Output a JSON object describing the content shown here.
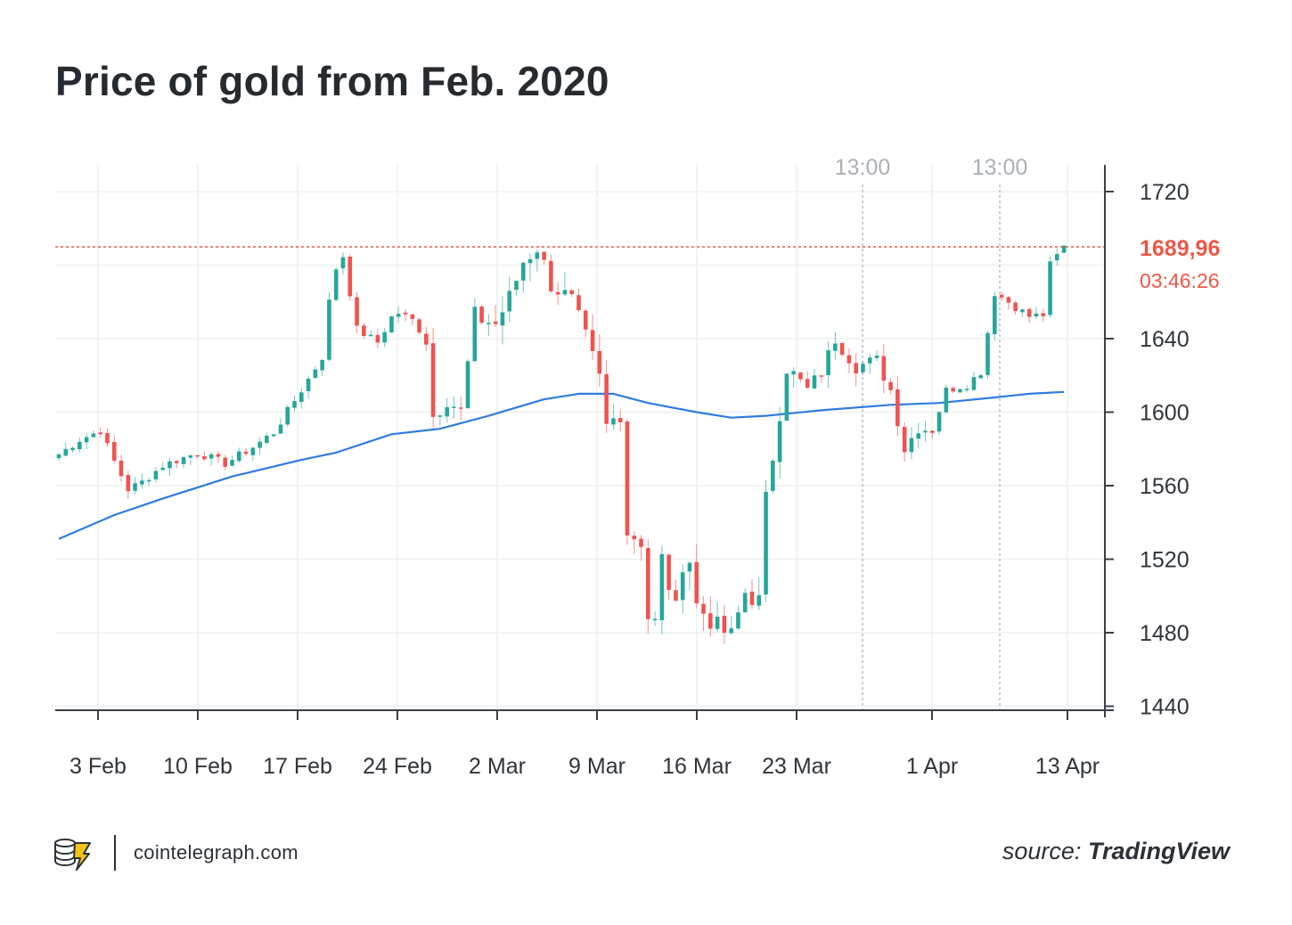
{
  "title": "Price of gold from Feb. 2020",
  "chart_data": {
    "type": "candlestick",
    "title": "Price of gold from Feb. 2020",
    "ylim": [
      1440,
      1730
    ],
    "y_ticks": [
      1440,
      1480,
      1520,
      1560,
      1600,
      1640,
      1720
    ],
    "x_ticks": [
      "3 Feb",
      "10 Feb",
      "17 Feb",
      "24 Feb",
      "2 Mar",
      "9 Mar",
      "16 Mar",
      "23 Mar",
      "1 Apr",
      "13 Apr"
    ],
    "top_time_labels": [
      "13:00",
      "13:00"
    ],
    "current_price": {
      "value": 1689.96,
      "label": "1689,96",
      "countdown": "03:46:26"
    },
    "grid": true,
    "colors": {
      "up": "#26a69a",
      "down": "#ef5350",
      "moving_average": "#2f7be0",
      "price_line": "#ec5745"
    },
    "anchors": [
      {
        "t": 0,
        "p": 1577
      },
      {
        "t": 3,
        "p": 1585
      },
      {
        "t": 6,
        "p": 1590
      },
      {
        "t": 7.5,
        "p": 1577
      },
      {
        "t": 10,
        "p": 1558
      },
      {
        "t": 12,
        "p": 1562
      },
      {
        "t": 15,
        "p": 1571
      },
      {
        "t": 20,
        "p": 1578
      },
      {
        "t": 24,
        "p": 1572
      },
      {
        "t": 28,
        "p": 1581
      },
      {
        "t": 31,
        "p": 1589
      },
      {
        "t": 35,
        "p": 1612
      },
      {
        "t": 38,
        "p": 1630
      },
      {
        "t": 39.5,
        "p": 1675
      },
      {
        "t": 41,
        "p": 1685
      },
      {
        "t": 43,
        "p": 1645
      },
      {
        "t": 46,
        "p": 1638
      },
      {
        "t": 48.5,
        "p": 1655
      },
      {
        "t": 51,
        "p": 1650
      },
      {
        "t": 53,
        "p": 1640
      },
      {
        "t": 54,
        "p": 1598
      },
      {
        "t": 56,
        "p": 1608
      },
      {
        "t": 58,
        "p": 1600
      },
      {
        "t": 60,
        "p": 1652
      },
      {
        "t": 63,
        "p": 1648
      },
      {
        "t": 65,
        "p": 1662
      },
      {
        "t": 67,
        "p": 1682
      },
      {
        "t": 69,
        "p": 1690
      },
      {
        "t": 71,
        "p": 1670
      },
      {
        "t": 74,
        "p": 1660
      },
      {
        "t": 76,
        "p": 1640
      },
      {
        "t": 78,
        "p": 1618
      },
      {
        "t": 79,
        "p": 1592
      },
      {
        "t": 81,
        "p": 1600
      },
      {
        "t": 82,
        "p": 1535
      },
      {
        "t": 84,
        "p": 1530
      },
      {
        "t": 85.5,
        "p": 1468
      },
      {
        "t": 87,
        "p": 1520
      },
      {
        "t": 89,
        "p": 1492
      },
      {
        "t": 90.5,
        "p": 1532
      },
      {
        "t": 92,
        "p": 1495
      },
      {
        "t": 95,
        "p": 1483
      },
      {
        "t": 97,
        "p": 1478
      },
      {
        "t": 99,
        "p": 1502
      },
      {
        "t": 101,
        "p": 1497
      },
      {
        "t": 102,
        "p": 1552
      },
      {
        "t": 105,
        "p": 1625
      },
      {
        "t": 108,
        "p": 1612
      },
      {
        "t": 110,
        "p": 1622
      },
      {
        "t": 112,
        "p": 1640
      },
      {
        "t": 115,
        "p": 1625
      },
      {
        "t": 118,
        "p": 1628
      },
      {
        "t": 120,
        "p": 1612
      },
      {
        "t": 122,
        "p": 1580
      },
      {
        "t": 124,
        "p": 1592
      },
      {
        "t": 126,
        "p": 1590
      },
      {
        "t": 128,
        "p": 1612
      },
      {
        "t": 131,
        "p": 1615
      },
      {
        "t": 133,
        "p": 1622
      },
      {
        "t": 135,
        "p": 1665
      },
      {
        "t": 137,
        "p": 1660
      },
      {
        "t": 140,
        "p": 1652
      },
      {
        "t": 142,
        "p": 1653
      },
      {
        "t": 143,
        "p": 1680
      },
      {
        "t": 145,
        "p": 1690
      }
    ],
    "moving_average": [
      {
        "t": 0,
        "p": 1531
      },
      {
        "t": 8,
        "p": 1544
      },
      {
        "t": 15,
        "p": 1553
      },
      {
        "t": 25,
        "p": 1565
      },
      {
        "t": 35,
        "p": 1574
      },
      {
        "t": 40,
        "p": 1578
      },
      {
        "t": 48,
        "p": 1588
      },
      {
        "t": 55,
        "p": 1591
      },
      {
        "t": 62,
        "p": 1598
      },
      {
        "t": 70,
        "p": 1607
      },
      {
        "t": 75,
        "p": 1610
      },
      {
        "t": 80,
        "p": 1610
      },
      {
        "t": 85,
        "p": 1605
      },
      {
        "t": 92,
        "p": 1600
      },
      {
        "t": 97,
        "p": 1597
      },
      {
        "t": 102,
        "p": 1598
      },
      {
        "t": 110,
        "p": 1601
      },
      {
        "t": 120,
        "p": 1604
      },
      {
        "t": 127,
        "p": 1605
      },
      {
        "t": 135,
        "p": 1608
      },
      {
        "t": 140,
        "p": 1610
      },
      {
        "t": 145,
        "p": 1611
      }
    ]
  },
  "footer": {
    "site": "cointelegraph.com",
    "source_prefix": "source:",
    "source_name": "TradingView"
  }
}
